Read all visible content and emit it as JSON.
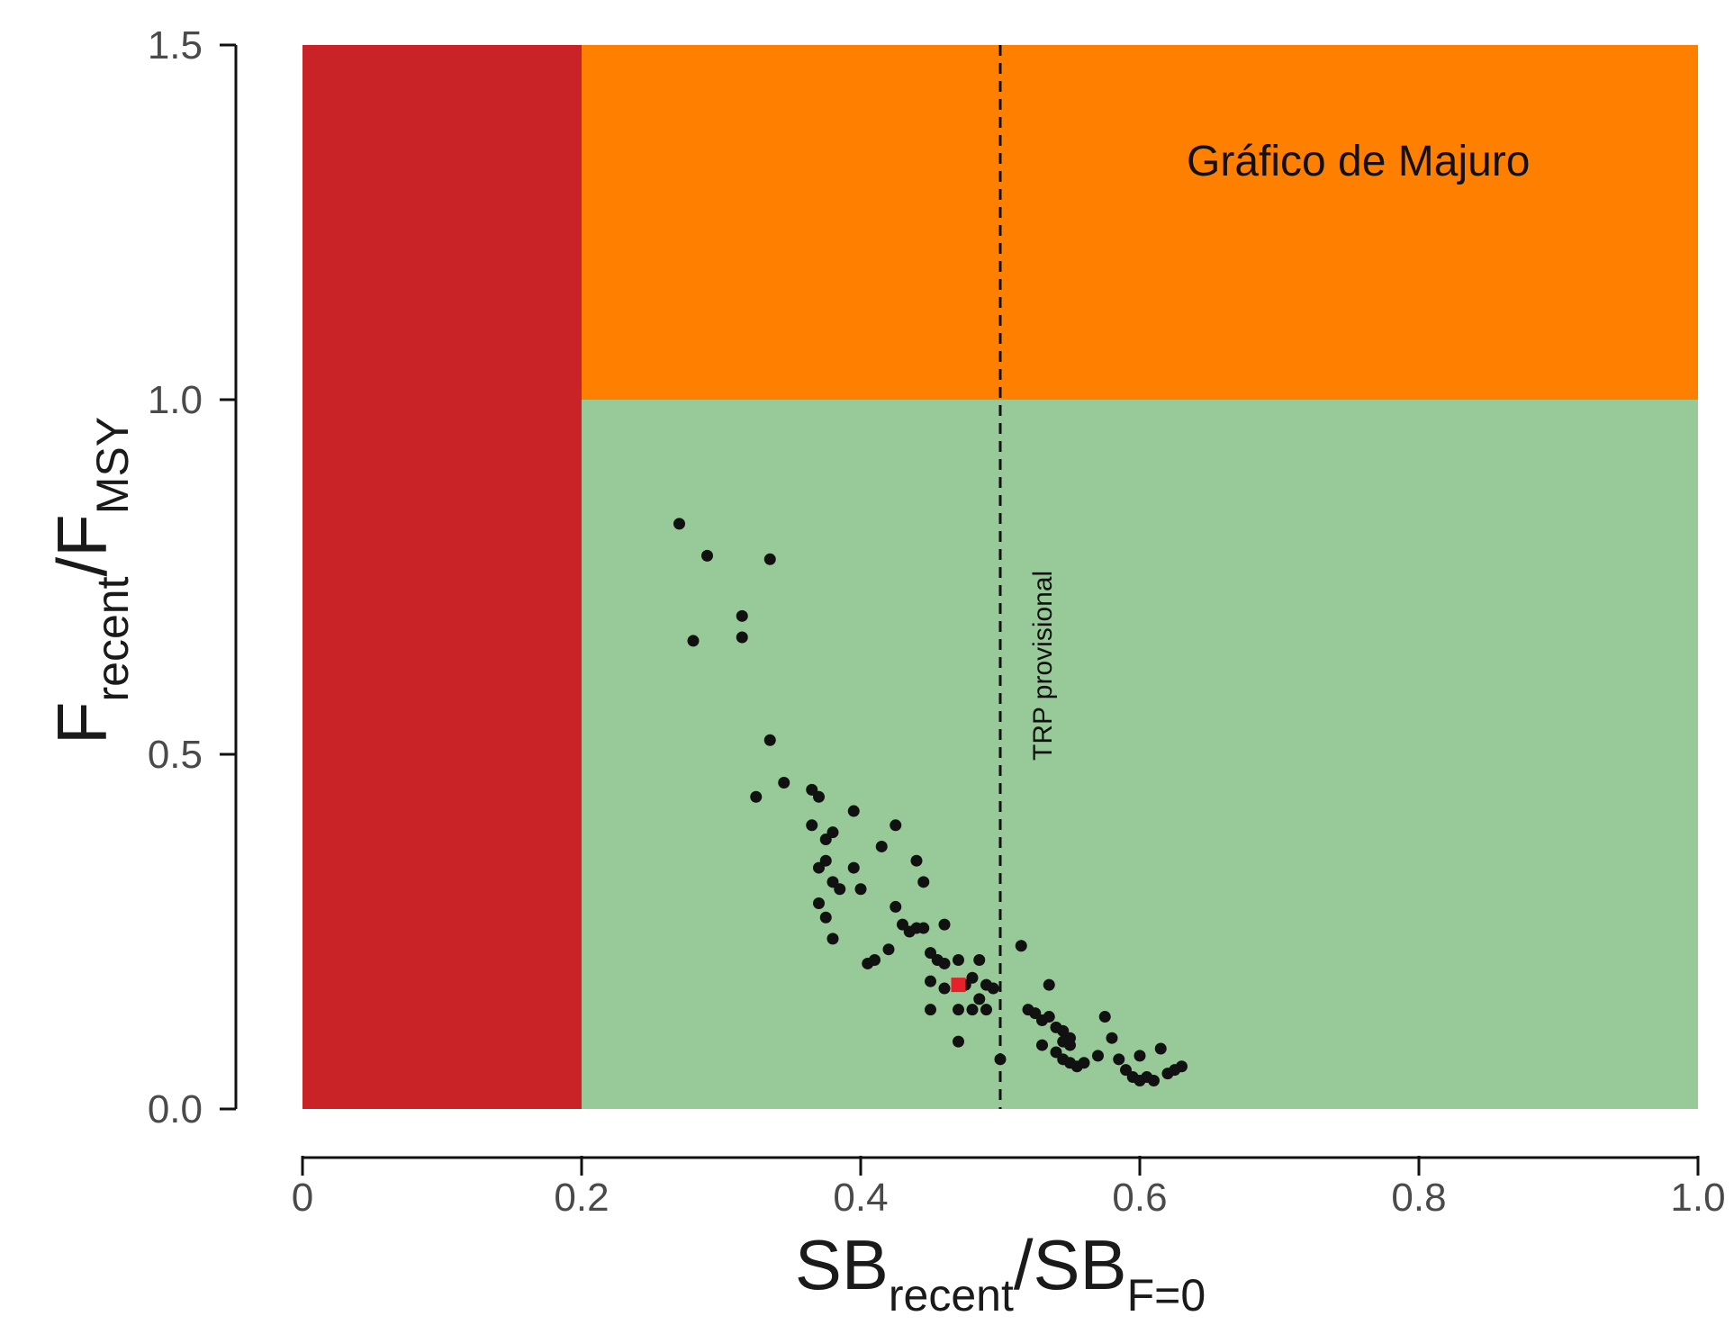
{
  "chart_data": {
    "type": "scatter",
    "title": "",
    "annotation": "Gráfico de Majuro",
    "reference_line": {
      "x": 0.5,
      "label": "TRP provisional",
      "style": "dashed"
    },
    "xlim": [
      0,
      1.0
    ],
    "ylim": [
      0,
      1.5
    ],
    "x_ticks": [
      {
        "value": 0,
        "label": "0"
      },
      {
        "value": 0.2,
        "label": "0.2"
      },
      {
        "value": 0.4,
        "label": "0.4"
      },
      {
        "value": 0.6,
        "label": "0.6"
      },
      {
        "value": 0.8,
        "label": "0.8"
      },
      {
        "value": 1.0,
        "label": "1.0"
      }
    ],
    "y_ticks": [
      {
        "value": 0.0,
        "label": "0.0"
      },
      {
        "value": 0.5,
        "label": "0.5"
      },
      {
        "value": 1.0,
        "label": "1.0"
      },
      {
        "value": 1.5,
        "label": "1.5"
      }
    ],
    "xlabel": {
      "main": "SB",
      "sub1": "recent",
      "sep": "/",
      "main2": "SB",
      "sub2": "F=0"
    },
    "ylabel": {
      "main": "F",
      "sub1": "recent",
      "sep": "/",
      "main2": "F",
      "sub2": "MSY"
    },
    "regions": [
      {
        "name": "red",
        "x": [
          0,
          0.2
        ],
        "y": [
          0,
          1.5
        ],
        "color": "#c92227"
      },
      {
        "name": "orange",
        "x": [
          0.2,
          1.0
        ],
        "y": [
          1.0,
          1.5
        ],
        "color": "#ff8000"
      },
      {
        "name": "green",
        "x": [
          0.2,
          1.0
        ],
        "y": [
          0,
          1.0
        ],
        "color": "#98c998"
      }
    ],
    "highlight_point": {
      "x": 0.47,
      "y": 0.175,
      "color": "#e8202a"
    },
    "points": [
      [
        0.27,
        0.825
      ],
      [
        0.29,
        0.78
      ],
      [
        0.335,
        0.775
      ],
      [
        0.315,
        0.695
      ],
      [
        0.315,
        0.665
      ],
      [
        0.28,
        0.66
      ],
      [
        0.335,
        0.52
      ],
      [
        0.345,
        0.46
      ],
      [
        0.325,
        0.44
      ],
      [
        0.365,
        0.45
      ],
      [
        0.37,
        0.44
      ],
      [
        0.365,
        0.4
      ],
      [
        0.375,
        0.38
      ],
      [
        0.38,
        0.39
      ],
      [
        0.395,
        0.42
      ],
      [
        0.425,
        0.4
      ],
      [
        0.415,
        0.37
      ],
      [
        0.37,
        0.34
      ],
      [
        0.375,
        0.35
      ],
      [
        0.38,
        0.32
      ],
      [
        0.385,
        0.31
      ],
      [
        0.395,
        0.34
      ],
      [
        0.4,
        0.31
      ],
      [
        0.44,
        0.35
      ],
      [
        0.445,
        0.32
      ],
      [
        0.37,
        0.29
      ],
      [
        0.375,
        0.27
      ],
      [
        0.38,
        0.24
      ],
      [
        0.425,
        0.285
      ],
      [
        0.43,
        0.26
      ],
      [
        0.435,
        0.25
      ],
      [
        0.44,
        0.255
      ],
      [
        0.42,
        0.225
      ],
      [
        0.405,
        0.205
      ],
      [
        0.41,
        0.21
      ],
      [
        0.445,
        0.255
      ],
      [
        0.46,
        0.26
      ],
      [
        0.45,
        0.22
      ],
      [
        0.455,
        0.21
      ],
      [
        0.46,
        0.205
      ],
      [
        0.47,
        0.21
      ],
      [
        0.485,
        0.21
      ],
      [
        0.45,
        0.18
      ],
      [
        0.46,
        0.17
      ],
      [
        0.475,
        0.175
      ],
      [
        0.48,
        0.185
      ],
      [
        0.49,
        0.175
      ],
      [
        0.495,
        0.17
      ],
      [
        0.485,
        0.155
      ],
      [
        0.49,
        0.14
      ],
      [
        0.48,
        0.14
      ],
      [
        0.47,
        0.14
      ],
      [
        0.45,
        0.14
      ],
      [
        0.47,
        0.095
      ],
      [
        0.5,
        0.07
      ],
      [
        0.515,
        0.23
      ],
      [
        0.535,
        0.175
      ],
      [
        0.52,
        0.14
      ],
      [
        0.525,
        0.135
      ],
      [
        0.53,
        0.125
      ],
      [
        0.535,
        0.13
      ],
      [
        0.54,
        0.115
      ],
      [
        0.545,
        0.11
      ],
      [
        0.55,
        0.1
      ],
      [
        0.545,
        0.095
      ],
      [
        0.55,
        0.09
      ],
      [
        0.53,
        0.09
      ],
      [
        0.54,
        0.08
      ],
      [
        0.545,
        0.07
      ],
      [
        0.55,
        0.065
      ],
      [
        0.555,
        0.06
      ],
      [
        0.56,
        0.065
      ],
      [
        0.57,
        0.075
      ],
      [
        0.575,
        0.13
      ],
      [
        0.58,
        0.1
      ],
      [
        0.585,
        0.07
      ],
      [
        0.59,
        0.055
      ],
      [
        0.595,
        0.045
      ],
      [
        0.6,
        0.04
      ],
      [
        0.605,
        0.045
      ],
      [
        0.61,
        0.04
      ],
      [
        0.615,
        0.085
      ],
      [
        0.62,
        0.05
      ],
      [
        0.625,
        0.055
      ],
      [
        0.63,
        0.06
      ],
      [
        0.6,
        0.075
      ]
    ]
  }
}
